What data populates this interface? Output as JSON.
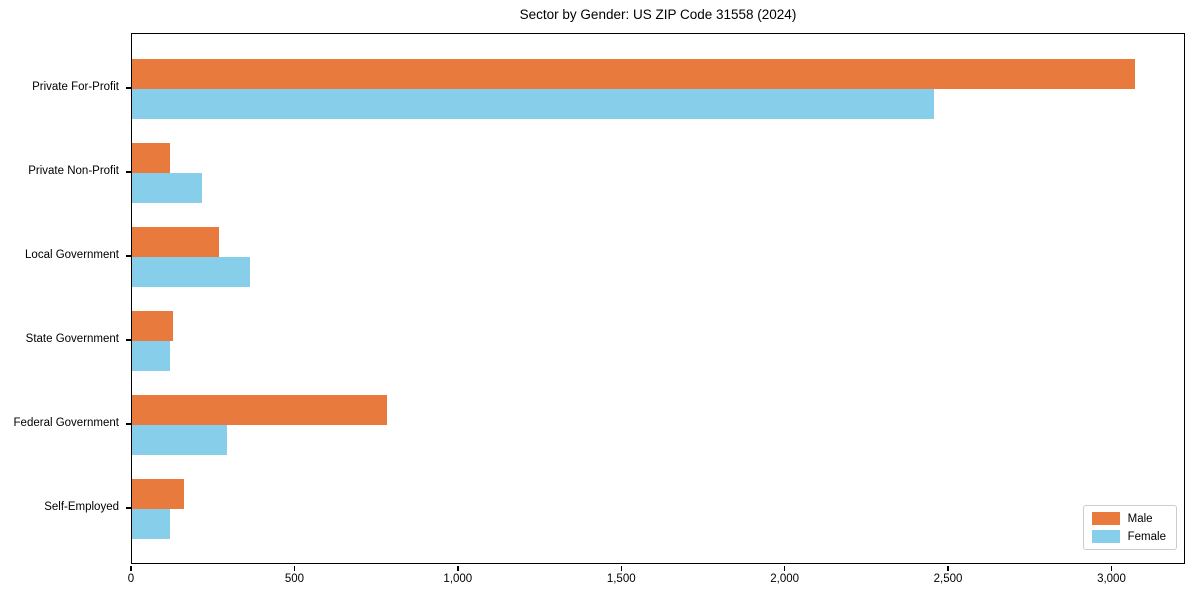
{
  "chart_data": {
    "type": "bar",
    "orientation": "horizontal",
    "title": "Sector by Gender: US ZIP Code 31558 (2024)",
    "categories": [
      "Private For-Profit",
      "Private Non-Profit",
      "Local Government",
      "State Government",
      "Federal Government",
      "Self-Employed"
    ],
    "series": [
      {
        "name": "Male",
        "color": "#e87a3d",
        "values": [
          3070,
          115,
          265,
          125,
          780,
          160
        ]
      },
      {
        "name": "Female",
        "color": "#87ceeb",
        "values": [
          2455,
          215,
          360,
          115,
          290,
          115
        ]
      }
    ],
    "xlabel": "",
    "ylabel": "",
    "xlim": [
      0,
      3225
    ],
    "xticks": [
      0,
      500,
      1000,
      1500,
      2000,
      2500,
      3000
    ],
    "xtick_labels": [
      "0",
      "500",
      "1,000",
      "1,500",
      "2,000",
      "2,500",
      "3,000"
    ],
    "grid": false,
    "legend": {
      "position": "lower right",
      "entries": [
        {
          "label": "Male",
          "color": "#e87a3d"
        },
        {
          "label": "Female",
          "color": "#87ceeb"
        }
      ]
    }
  }
}
